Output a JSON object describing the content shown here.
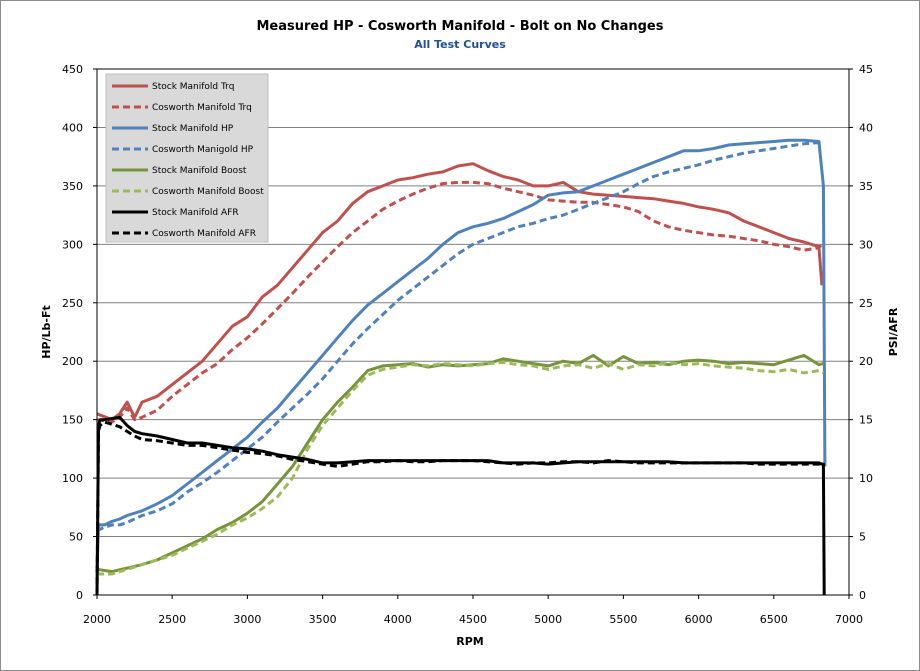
{
  "chart_data": {
    "type": "line",
    "title": "Measured HP  - Cosworth Manifold - Bolt on No Changes",
    "subtitle": "All Test Curves",
    "xlabel": "RPM",
    "ylabel": "HP/Lb-Ft",
    "y2label": "PSI/AFR",
    "xlim": [
      2000,
      7000
    ],
    "ylim": [
      0,
      450
    ],
    "y2lim": [
      0,
      45
    ],
    "xticks": [
      2000,
      2500,
      3000,
      3500,
      4000,
      4500,
      5000,
      5500,
      6000,
      6500,
      7000
    ],
    "yticks": [
      0,
      50,
      100,
      150,
      200,
      250,
      300,
      350,
      400,
      450
    ],
    "y2ticks": [
      0,
      5,
      10,
      15,
      20,
      25,
      30,
      35,
      40,
      45
    ],
    "grid": "horizontal",
    "legend_position": "top-left",
    "series": [
      {
        "name": "Stock Manifold Trq",
        "axis": "left",
        "color": "#c0504d",
        "dash": "solid",
        "x": [
          2000,
          2100,
          2150,
          2200,
          2250,
          2300,
          2400,
          2500,
          2600,
          2700,
          2800,
          2900,
          3000,
          3100,
          3200,
          3300,
          3400,
          3500,
          3600,
          3700,
          3800,
          3900,
          4000,
          4100,
          4200,
          4300,
          4400,
          4500,
          4600,
          4700,
          4800,
          4900,
          5000,
          5100,
          5200,
          5300,
          5400,
          5500,
          5600,
          5700,
          5800,
          5900,
          6000,
          6100,
          6200,
          6300,
          6400,
          6500,
          6600,
          6700,
          6800,
          6820
        ],
        "y": [
          155,
          150,
          155,
          165,
          152,
          165,
          170,
          180,
          190,
          200,
          215,
          230,
          238,
          255,
          265,
          280,
          295,
          310,
          320,
          335,
          345,
          350,
          355,
          357,
          360,
          362,
          367,
          369,
          363,
          358,
          355,
          350,
          350,
          353,
          345,
          343,
          342,
          341,
          340,
          339,
          337,
          335,
          332,
          330,
          327,
          320,
          315,
          310,
          305,
          302,
          298,
          265
        ]
      },
      {
        "name": "Cosworth Manifold Trq",
        "axis": "left",
        "color": "#c0504d",
        "dash": "dashed",
        "x": [
          2000,
          2100,
          2150,
          2200,
          2250,
          2300,
          2400,
          2500,
          2600,
          2700,
          2800,
          2900,
          3000,
          3100,
          3200,
          3300,
          3400,
          3500,
          3600,
          3700,
          3800,
          3900,
          4000,
          4100,
          4200,
          4300,
          4400,
          4500,
          4600,
          4700,
          4800,
          4900,
          5000,
          5100,
          5200,
          5300,
          5400,
          5500,
          5600,
          5700,
          5800,
          5900,
          6000,
          6100,
          6200,
          6300,
          6400,
          6500,
          6600,
          6700,
          6800,
          6820
        ],
        "y": [
          150,
          148,
          152,
          160,
          150,
          152,
          158,
          170,
          180,
          190,
          198,
          210,
          220,
          232,
          245,
          258,
          272,
          285,
          298,
          310,
          320,
          330,
          337,
          343,
          348,
          352,
          353,
          353,
          352,
          348,
          345,
          342,
          338,
          337,
          336,
          336,
          334,
          332,
          328,
          320,
          315,
          312,
          310,
          308,
          307,
          305,
          303,
          300,
          298,
          295,
          297,
          300
        ]
      },
      {
        "name": "Stock Manifold HP",
        "axis": "left",
        "color": "#4f81bd",
        "dash": "solid",
        "x": [
          2000,
          2010,
          2050,
          2100,
          2150,
          2200,
          2300,
          2400,
          2500,
          2600,
          2700,
          2800,
          2900,
          3000,
          3100,
          3200,
          3300,
          3400,
          3500,
          3600,
          3700,
          3800,
          3900,
          4000,
          4100,
          4200,
          4300,
          4400,
          4500,
          4600,
          4700,
          4800,
          4900,
          5000,
          5100,
          5200,
          5300,
          5400,
          5500,
          5600,
          5700,
          5800,
          5900,
          6000,
          6100,
          6200,
          6300,
          6400,
          6500,
          6600,
          6700,
          6800,
          6830,
          6840
        ],
        "y": [
          20,
          60,
          60,
          63,
          65,
          68,
          72,
          78,
          85,
          95,
          105,
          115,
          125,
          135,
          148,
          160,
          175,
          190,
          205,
          220,
          235,
          248,
          258,
          268,
          278,
          288,
          300,
          310,
          315,
          318,
          322,
          328,
          334,
          342,
          344,
          345,
          350,
          355,
          360,
          365,
          370,
          375,
          380,
          380,
          382,
          385,
          386,
          387,
          388,
          389,
          389,
          388,
          350,
          110
        ]
      },
      {
        "name": "Cosworth Manigold HP",
        "axis": "left",
        "color": "#4f81bd",
        "dash": "dashed",
        "x": [
          2000,
          2050,
          2100,
          2150,
          2200,
          2300,
          2400,
          2500,
          2600,
          2700,
          2800,
          2900,
          3000,
          3100,
          3200,
          3300,
          3400,
          3500,
          3600,
          3700,
          3800,
          3900,
          4000,
          4100,
          4200,
          4300,
          4400,
          4500,
          4600,
          4700,
          4800,
          4900,
          5000,
          5100,
          5200,
          5300,
          5400,
          5500,
          5600,
          5700,
          5800,
          5900,
          6000,
          6100,
          6200,
          6300,
          6400,
          6500,
          6600,
          6700,
          6800,
          6820
        ],
        "y": [
          55,
          58,
          60,
          60,
          62,
          68,
          72,
          78,
          88,
          96,
          105,
          115,
          125,
          135,
          148,
          160,
          172,
          185,
          200,
          215,
          228,
          240,
          252,
          262,
          272,
          282,
          292,
          300,
          305,
          310,
          315,
          318,
          322,
          325,
          330,
          335,
          340,
          345,
          352,
          358,
          362,
          365,
          368,
          372,
          375,
          378,
          380,
          382,
          384,
          386,
          387,
          385
        ]
      },
      {
        "name": "Stock Manifold Boost",
        "axis": "right",
        "color": "#77933c",
        "dash": "solid",
        "x": [
          2000,
          2100,
          2200,
          2300,
          2400,
          2500,
          2600,
          2700,
          2800,
          2900,
          3000,
          3100,
          3200,
          3300,
          3400,
          3500,
          3600,
          3700,
          3800,
          3900,
          4000,
          4100,
          4200,
          4300,
          4400,
          4500,
          4600,
          4700,
          4800,
          4900,
          5000,
          5100,
          5200,
          5300,
          5400,
          5500,
          5600,
          5700,
          5800,
          5900,
          6000,
          6100,
          6200,
          6300,
          6400,
          6500,
          6600,
          6700,
          6800,
          6830
        ],
        "y": [
          2.2,
          2.0,
          2.3,
          2.6,
          3.0,
          3.6,
          4.2,
          4.8,
          5.6,
          6.2,
          7.0,
          8.0,
          9.5,
          11.0,
          13.0,
          15.0,
          16.5,
          17.8,
          19.2,
          19.6,
          19.7,
          19.8,
          19.5,
          19.7,
          19.6,
          19.7,
          19.8,
          20.2,
          20.0,
          19.8,
          19.6,
          20.0,
          19.8,
          20.5,
          19.6,
          20.4,
          19.8,
          19.9,
          19.7,
          20.0,
          20.1,
          20.0,
          19.8,
          19.9,
          19.8,
          19.7,
          20.1,
          20.5,
          19.7,
          19.8
        ]
      },
      {
        "name": "Cosworth Manifold Boost",
        "axis": "right",
        "color": "#9bbb59",
        "dash": "dashed",
        "x": [
          2000,
          2100,
          2200,
          2300,
          2400,
          2500,
          2600,
          2700,
          2800,
          2900,
          3000,
          3100,
          3200,
          3300,
          3400,
          3500,
          3600,
          3700,
          3800,
          3900,
          4000,
          4100,
          4200,
          4300,
          4400,
          4500,
          4600,
          4700,
          4800,
          4900,
          5000,
          5100,
          5200,
          5300,
          5400,
          5500,
          5600,
          5700,
          5800,
          5900,
          6000,
          6100,
          6200,
          6300,
          6400,
          6500,
          6600,
          6700,
          6800,
          6830
        ],
        "y": [
          1.8,
          1.8,
          2.2,
          2.6,
          3.0,
          3.4,
          4.0,
          4.6,
          5.2,
          6.0,
          6.6,
          7.4,
          8.4,
          10.0,
          12.5,
          14.5,
          16.0,
          17.5,
          18.8,
          19.3,
          19.5,
          19.7,
          19.6,
          19.8,
          19.7,
          19.6,
          19.8,
          19.9,
          19.7,
          19.6,
          19.3,
          19.6,
          19.7,
          19.4,
          19.8,
          19.3,
          19.7,
          19.6,
          19.9,
          19.7,
          19.8,
          19.6,
          19.5,
          19.4,
          19.2,
          19.1,
          19.3,
          19.0,
          19.2,
          19.0
        ]
      },
      {
        "name": "Stock Manifold AFR",
        "axis": "right",
        "color": "#000000",
        "dash": "solid",
        "x": [
          2000,
          2010,
          2020,
          2050,
          2100,
          2150,
          2200,
          2250,
          2300,
          2400,
          2500,
          2600,
          2700,
          2800,
          2900,
          3000,
          3100,
          3200,
          3300,
          3400,
          3500,
          3600,
          3700,
          3800,
          3900,
          4000,
          4100,
          4200,
          4300,
          4400,
          4500,
          4600,
          4700,
          4800,
          4900,
          5000,
          5100,
          5200,
          5300,
          5400,
          5500,
          5600,
          5700,
          5800,
          5900,
          6000,
          6100,
          6200,
          6300,
          6400,
          6500,
          6600,
          6700,
          6800,
          6820,
          6830,
          6835
        ],
        "y": [
          0,
          14.5,
          15.0,
          15.0,
          15.1,
          15.2,
          14.5,
          14.0,
          13.8,
          13.6,
          13.3,
          13.0,
          13.0,
          12.8,
          12.6,
          12.5,
          12.3,
          12.0,
          11.8,
          11.6,
          11.3,
          11.3,
          11.4,
          11.5,
          11.5,
          11.5,
          11.5,
          11.5,
          11.5,
          11.5,
          11.5,
          11.5,
          11.3,
          11.3,
          11.3,
          11.2,
          11.3,
          11.4,
          11.4,
          11.4,
          11.4,
          11.4,
          11.4,
          11.4,
          11.3,
          11.3,
          11.3,
          11.3,
          11.3,
          11.3,
          11.3,
          11.3,
          11.3,
          11.3,
          11.2,
          11.2,
          0
        ]
      },
      {
        "name": "Cosworth Manifold AFR",
        "axis": "right",
        "color": "#000000",
        "dash": "dashed",
        "x": [
          2000,
          2010,
          2020,
          2050,
          2100,
          2150,
          2200,
          2250,
          2300,
          2400,
          2500,
          2600,
          2700,
          2800,
          2900,
          3000,
          3100,
          3200,
          3300,
          3400,
          3500,
          3600,
          3700,
          3800,
          3900,
          4000,
          4100,
          4200,
          4300,
          4400,
          4500,
          4600,
          4700,
          4800,
          4900,
          5000,
          5100,
          5200,
          5300,
          5400,
          5500,
          5600,
          5700,
          5800,
          5900,
          6000,
          6100,
          6200,
          6300,
          6400,
          6500,
          6600,
          6700,
          6800,
          6820
        ],
        "y": [
          0,
          14.0,
          14.5,
          14.8,
          14.6,
          14.4,
          14.0,
          13.6,
          13.3,
          13.2,
          13.0,
          12.8,
          12.8,
          12.6,
          12.4,
          12.2,
          12.1,
          11.9,
          11.6,
          11.4,
          11.2,
          11.0,
          11.2,
          11.4,
          11.4,
          11.5,
          11.4,
          11.4,
          11.5,
          11.5,
          11.5,
          11.4,
          11.3,
          11.2,
          11.3,
          11.3,
          11.4,
          11.4,
          11.3,
          11.5,
          11.4,
          11.3,
          11.3,
          11.3,
          11.3,
          11.3,
          11.3,
          11.3,
          11.3,
          11.2,
          11.2,
          11.2,
          11.2,
          11.2,
          11.2
        ]
      }
    ]
  }
}
